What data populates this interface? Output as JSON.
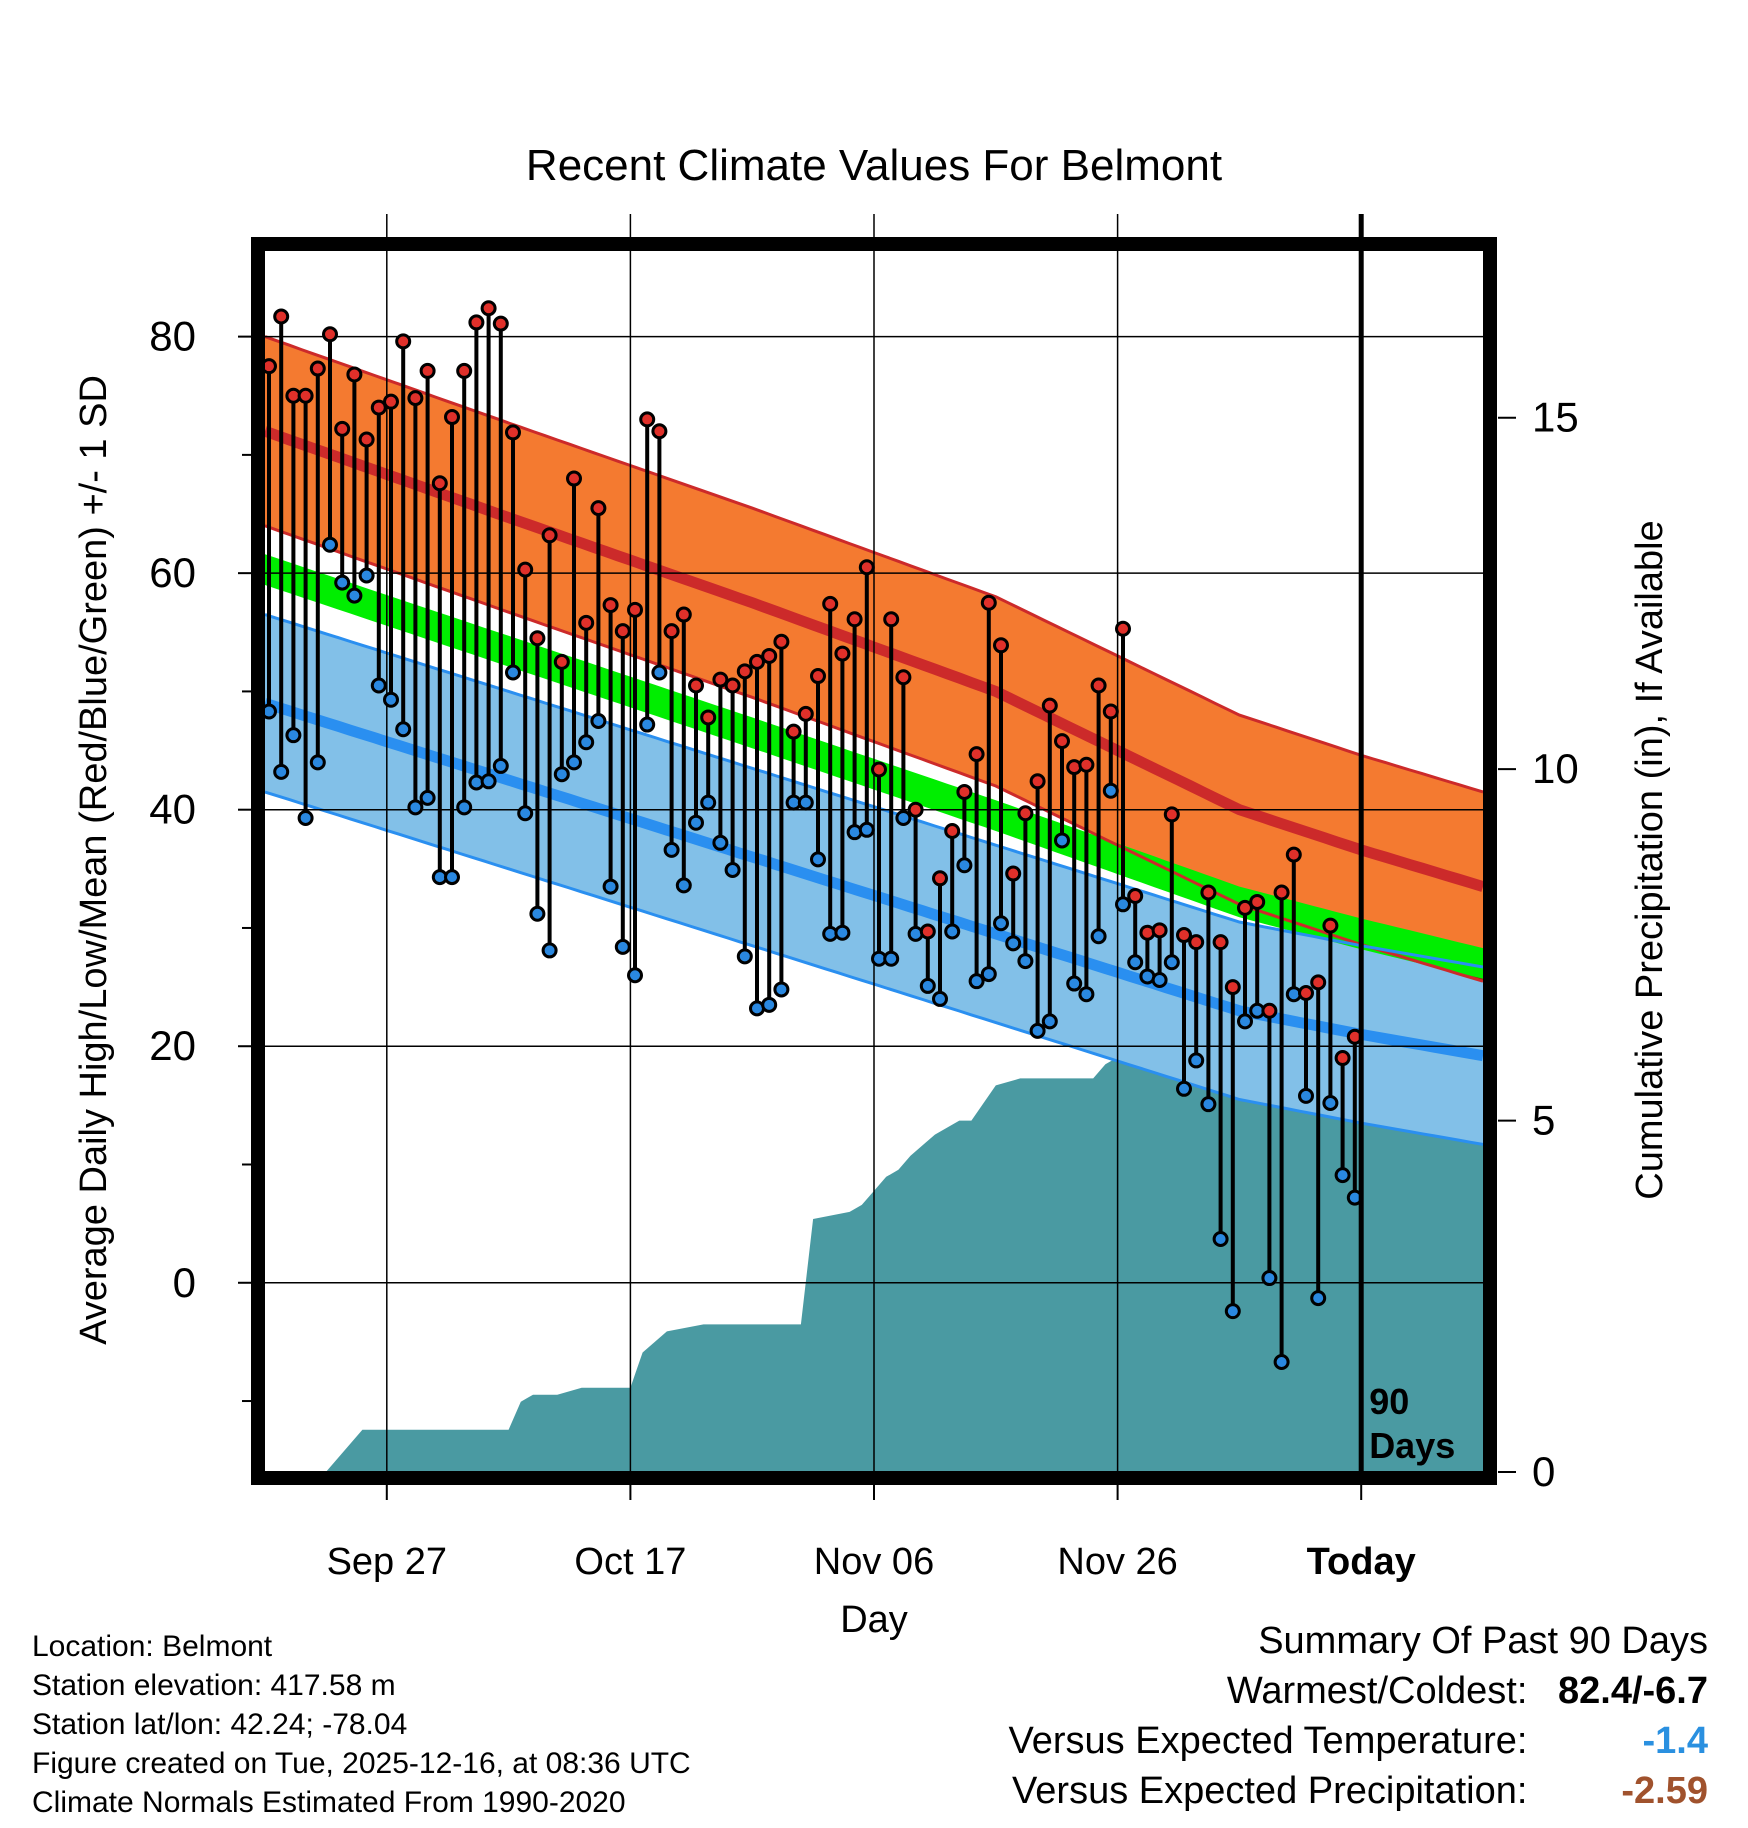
{
  "chart_data": {
    "type": "line",
    "title": "Recent Climate Values For Belmont",
    "xlabel": "Day",
    "ylabel": "Average Daily High/Low/Mean (Red/Blue/Green) +/- 1 SD",
    "y2label": "Cumulative Precipitation (in), If Available",
    "ylim": [
      -16,
      88
    ],
    "y2lim": [
      0,
      17.5
    ],
    "xlim": [
      0,
      100
    ],
    "x_ticks": [
      {
        "x": 10,
        "label": "Sep 27"
      },
      {
        "x": 30,
        "label": "Oct 17"
      },
      {
        "x": 50,
        "label": "Nov 06"
      },
      {
        "x": 70,
        "label": "Nov 26"
      },
      {
        "x": 90,
        "label": "Today"
      }
    ],
    "y_ticks": [
      0,
      20,
      40,
      60,
      80
    ],
    "y_minor_ticks": [
      -10,
      10,
      30,
      50,
      70
    ],
    "y2_ticks": [
      0,
      5,
      10,
      15
    ],
    "grid": true,
    "today_x": 90,
    "today_annotation": [
      "90",
      "Days"
    ],
    "normals": {
      "x": [
        0,
        20,
        40,
        60,
        80,
        90,
        100
      ],
      "high_mean": [
        72,
        64.7,
        57.5,
        50,
        40,
        36.6,
        33.5
      ],
      "high_sd": 8,
      "low_mean": [
        49,
        42.5,
        36,
        29.5,
        23,
        21,
        19.2
      ],
      "low_sd": 7.5,
      "mean": [
        60.3,
        53.4,
        46.5,
        39.5,
        32.2,
        29.5,
        27
      ],
      "mean_band_half_width": 1.3
    },
    "daily": {
      "x": [
        0,
        1,
        2,
        3,
        4,
        5,
        6,
        7,
        8,
        9,
        10,
        11,
        12,
        13,
        14,
        15,
        16,
        17,
        18,
        19,
        20,
        21,
        22,
        23,
        24,
        25,
        26,
        27,
        28,
        29,
        30,
        31,
        32,
        33,
        34,
        35,
        36,
        37,
        38,
        39,
        40,
        41,
        42,
        43,
        44,
        45,
        46,
        47,
        48,
        49,
        50,
        51,
        52,
        53,
        54,
        55,
        56,
        57,
        58,
        59,
        60,
        61,
        62,
        63,
        64,
        65,
        66,
        67,
        68,
        69,
        70,
        71,
        72,
        73,
        74,
        75,
        76,
        77,
        78,
        79,
        80,
        81,
        82,
        83,
        84,
        85,
        86,
        87,
        88,
        89
      ],
      "high": [
        77.5,
        81.7,
        75,
        75,
        77.3,
        80.2,
        72.2,
        76.8,
        71.3,
        74,
        74.5,
        79.6,
        74.8,
        77.1,
        67.6,
        73.2,
        77.1,
        81.2,
        82.4,
        81.1,
        71.9,
        60.3,
        54.5,
        63.2,
        52.5,
        68,
        55.8,
        65.5,
        57.3,
        55.1,
        56.9,
        73,
        72,
        55.1,
        56.5,
        50.5,
        47.8,
        51,
        50.5,
        51.7,
        52.5,
        53,
        54.2,
        46.6,
        48.1,
        51.3,
        57.4,
        53.2,
        56.1,
        60.5,
        43.4,
        56.1,
        51.2,
        40,
        29.7,
        34.2,
        38.2,
        41.5,
        44.7,
        57.5,
        53.9,
        34.6,
        39.7,
        42.4,
        48.8,
        45.8,
        43.6,
        43.8,
        50.5,
        48.3,
        55.3,
        32.7,
        29.6,
        29.8,
        39.6,
        29.4,
        28.8,
        33,
        28.8,
        25,
        31.7,
        32.2,
        23,
        33,
        36.2,
        24.5,
        25.4,
        30.2,
        19,
        20.8
      ],
      "low": [
        48.3,
        43.2,
        46.3,
        39.3,
        44,
        62.4,
        59.2,
        58.1,
        59.8,
        50.5,
        49.3,
        46.8,
        40.2,
        41,
        34.3,
        34.3,
        40.2,
        42.3,
        42.4,
        43.7,
        51.6,
        39.7,
        31.2,
        28.1,
        43,
        44,
        45.7,
        47.5,
        33.5,
        28.4,
        26,
        47.2,
        51.6,
        36.6,
        33.6,
        38.9,
        40.6,
        37.2,
        34.9,
        27.6,
        23.2,
        23.5,
        24.8,
        40.6,
        40.6,
        35.8,
        29.5,
        29.6,
        38.1,
        38.3,
        27.4,
        27.4,
        39.3,
        29.5,
        25.1,
        24,
        29.7,
        35.3,
        25.5,
        26.1,
        30.4,
        28.7,
        27.2,
        21.3,
        22.1,
        37.4,
        25.3,
        24.4,
        29.3,
        41.6,
        32,
        27.1,
        25.9,
        25.6,
        27.1,
        16.4,
        18.8,
        15.1,
        3.7,
        -2.4,
        22.1,
        23,
        0.4,
        -6.7,
        24.4,
        15.8,
        -1.3,
        15.2,
        9.1,
        7.2
      ]
    },
    "precip": {
      "x": [
        0,
        5,
        6,
        8,
        10,
        12,
        14,
        18,
        20,
        21,
        22,
        24,
        26,
        30,
        31,
        33,
        36,
        40,
        44,
        45,
        48,
        49,
        50,
        51,
        52,
        53,
        55,
        57,
        58,
        60,
        62,
        66,
        68,
        69,
        70,
        72,
        74,
        76,
        78,
        80,
        82,
        84,
        85,
        86,
        88,
        100
      ],
      "cumulative": [
        0,
        0,
        0.2,
        0.6,
        0.6,
        0.6,
        0.6,
        0.6,
        0.6,
        1,
        1.1,
        1.1,
        1.2,
        1.2,
        1.7,
        2,
        2.1,
        2.1,
        2.1,
        3.6,
        3.7,
        3.8,
        4,
        4.2,
        4.3,
        4.5,
        4.8,
        5,
        5,
        5.5,
        5.6,
        5.6,
        5.6,
        5.8,
        5.9,
        6,
        6.2,
        6.2,
        6.4,
        6.6,
        6.7,
        6.8,
        7,
        7.4,
        7.55,
        7.6
      ]
    }
  },
  "info": {
    "location": "Location: Belmont",
    "elevation": "Station elevation: 417.58 m",
    "latlon": "Station lat/lon: 42.24; -78.04",
    "created": "Figure created on Tue, 2025-12-16, at 08:36 UTC",
    "normals": "Climate Normals Estimated From 1990-2020"
  },
  "summary": {
    "title": "Summary Of Past 90 Days",
    "warmest_label": "Warmest/Coldest:",
    "warmest_value": "82.4/-6.7",
    "temp_label": "Versus Expected Temperature:",
    "temp_value": "-1.4",
    "temp_color": "#2a90e0",
    "precip_label": "Versus Expected Precipitation:",
    "precip_value": "-2.59",
    "precip_color": "#a0522d"
  },
  "colors": {
    "high_band": "#f47a30",
    "high_band_edge": "#cc2a2a",
    "high_mean": "#cc2a2a",
    "low_band": "#82c0e8",
    "low_band_edge": "#2a8ff0",
    "low_mean": "#2a8ff0",
    "mean_band": "#00ee00",
    "overlap": "#991111",
    "precip": "#4a9aa2",
    "high_dot": "#e0302a",
    "low_dot": "#2a88e0"
  }
}
